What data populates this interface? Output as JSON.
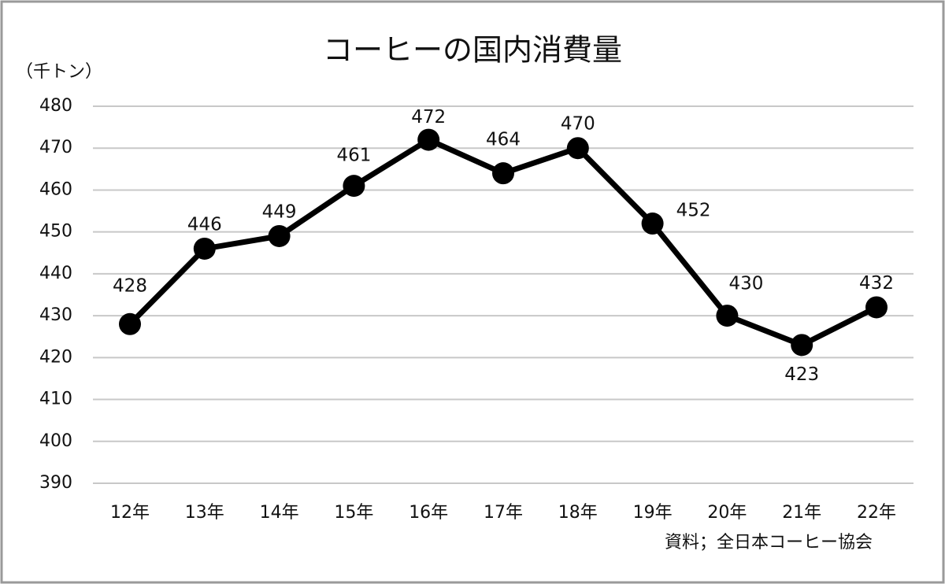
{
  "chart_data": {
    "type": "line",
    "title": "コーヒーの国内消費量",
    "y_label": "（千トン）",
    "source": "資料；全日本コーヒー協会",
    "categories": [
      "12年",
      "13年",
      "14年",
      "15年",
      "16年",
      "17年",
      "18年",
      "19年",
      "20年",
      "21年",
      "22年"
    ],
    "values": [
      428,
      446,
      449,
      461,
      472,
      464,
      470,
      452,
      430,
      423,
      432
    ],
    "color": "#000000",
    "ylim": [
      390,
      480
    ],
    "yticks": [
      390,
      400,
      410,
      420,
      430,
      440,
      450,
      460,
      470,
      480
    ],
    "grid": true
  }
}
